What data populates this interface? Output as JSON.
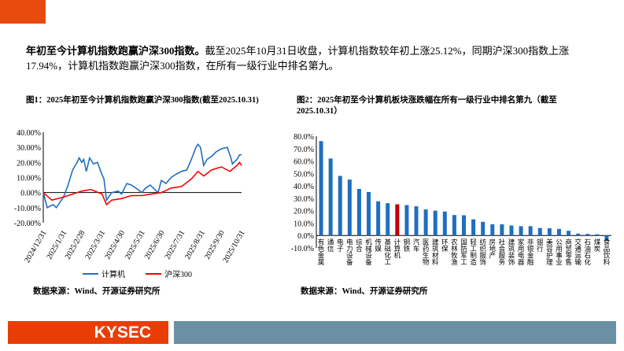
{
  "intro": {
    "bold": "年初至今计算机指数跑赢沪深300指数。",
    "text": "截至2025年10月31日收盘，计算机指数较年初上涨25.12%，同期沪深300指数上涨17.94%，计算机指数跑赢沪深300指数，在所有一级行业中排名第九。"
  },
  "figure1": {
    "title": "图1：2025年初至今计算机指数跑赢沪深300指数(截至2025.10.31)",
    "source": "数据来源：Wind、开源证券研究所"
  },
  "figure2": {
    "title": "图2：2025年初至今计算机板块涨跌幅在所有一级行业中排名第九（截至2025.10.31）",
    "source": "数据来源：Wind、开源证券研究所"
  },
  "footer": {
    "brand": "KYSEC",
    "brand_color": "#e83d05",
    "bar_color": "#6b90a4"
  },
  "chart_data": [
    {
      "type": "line",
      "ylim": [
        -20,
        40
      ],
      "yticks": [
        "40.00%",
        "30.00%",
        "20.00%",
        "10.00%",
        "0.00%",
        "-10.00%",
        "-20.00%"
      ],
      "xticks": [
        "2024/12/31",
        "2025/1/31",
        "2025/2/28",
        "2025/3/31",
        "2025/4/30",
        "2025/5/31",
        "2025/6/30",
        "2025/7/31",
        "2025/8/31",
        "2025/9/30",
        "2025/10/31"
      ],
      "legend_position": "bottom",
      "series": [
        {
          "name": "计算机",
          "color": "#1f6fc0",
          "x": [
            "2024-12-31",
            "2025-01-06",
            "2025-01-15",
            "2025-01-20",
            "2025-01-31",
            "2025-02-07",
            "2025-02-14",
            "2025-02-21",
            "2025-02-24",
            "2025-02-28",
            "2025-03-03",
            "2025-03-07",
            "2025-03-12",
            "2025-03-18",
            "2025-03-24",
            "2025-03-31",
            "2025-04-03",
            "2025-04-07",
            "2025-04-15",
            "2025-04-25",
            "2025-04-30",
            "2025-05-08",
            "2025-05-15",
            "2025-05-22",
            "2025-05-31",
            "2025-06-06",
            "2025-06-13",
            "2025-06-20",
            "2025-06-25",
            "2025-06-30",
            "2025-07-07",
            "2025-07-15",
            "2025-07-22",
            "2025-07-31",
            "2025-08-08",
            "2025-08-15",
            "2025-08-22",
            "2025-08-25",
            "2025-08-29",
            "2025-09-03",
            "2025-09-08",
            "2025-09-15",
            "2025-09-22",
            "2025-09-30",
            "2025-10-09",
            "2025-10-14",
            "2025-10-17",
            "2025-10-24",
            "2025-10-28",
            "2025-10-31"
          ],
          "y": [
            0,
            -10,
            -8,
            -10,
            -3,
            5,
            15,
            20,
            23,
            20,
            22,
            14,
            23,
            19,
            20,
            12,
            9,
            -5,
            0,
            1,
            -1,
            6,
            5,
            3,
            0,
            3,
            5,
            2,
            0,
            8,
            6,
            10,
            12,
            14,
            15,
            22,
            30,
            32,
            30,
            18,
            22,
            24,
            27,
            29,
            30,
            24,
            19,
            22,
            25,
            25.12
          ]
        },
        {
          "name": "沪深300",
          "color": "#ff0000",
          "x": [
            "2024-12-31",
            "2025-01-13",
            "2025-01-31",
            "2025-02-14",
            "2025-02-28",
            "2025-03-14",
            "2025-03-31",
            "2025-04-07",
            "2025-04-15",
            "2025-04-30",
            "2025-05-15",
            "2025-05-31",
            "2025-06-15",
            "2025-06-30",
            "2025-07-15",
            "2025-07-31",
            "2025-08-15",
            "2025-08-25",
            "2025-09-03",
            "2025-09-15",
            "2025-09-30",
            "2025-10-13",
            "2025-10-24",
            "2025-10-28",
            "2025-10-31"
          ],
          "y": [
            0,
            -5,
            -3,
            -1,
            1,
            2,
            -1,
            -8,
            -5,
            -4,
            -2,
            -2,
            -1,
            0,
            3,
            4,
            9,
            14,
            11,
            15,
            17,
            14,
            18,
            20,
            17.94
          ]
        }
      ]
    },
    {
      "type": "bar",
      "ylim": [
        -10,
        80
      ],
      "yticks": [
        "80.0%",
        "70.0%",
        "60.0%",
        "50.0%",
        "40.0%",
        "30.0%",
        "20.0%",
        "10.0%",
        "0.0%",
        "-10.0%"
      ],
      "bar_color": "#1f6fc0",
      "highlight_color": "#c00000",
      "highlight": "计算机",
      "categories": [
        "有色金属",
        "通信",
        "电子",
        "电力设备",
        "综合",
        "机械设备",
        "传媒",
        "基础化工",
        "计算机",
        "钢铁",
        "汽车",
        "医药生物",
        "建筑材料",
        "环保",
        "农林牧渔",
        "国防军工",
        "轻工制造",
        "纺织服饰",
        "房地产",
        "社会服务",
        "建筑装饰",
        "家用电器",
        "非银金融",
        "银行",
        "美容护理",
        "公用事业",
        "商贸零售",
        "交通运输",
        "石油石化",
        "煤炭",
        "食品饮料"
      ],
      "values": [
        76,
        62,
        48,
        45,
        37.5,
        35,
        27.5,
        26,
        25.12,
        24.5,
        23.5,
        21,
        20,
        19.3,
        16.5,
        16.3,
        13,
        11,
        9,
        9,
        8,
        7.5,
        7.5,
        6,
        5.8,
        5.3,
        3.8,
        1.5,
        1.3,
        1,
        -4
      ]
    }
  ]
}
